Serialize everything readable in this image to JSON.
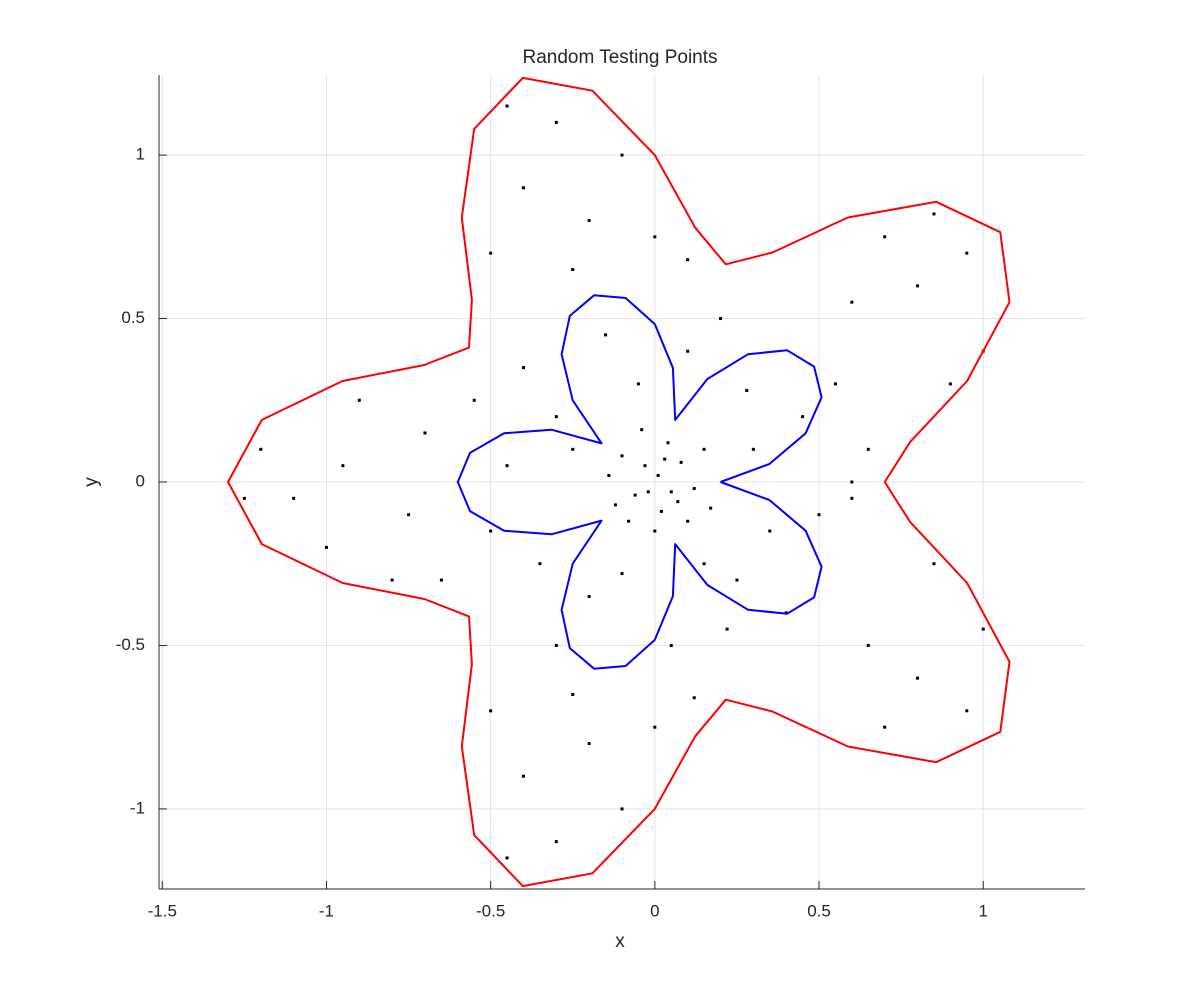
{
  "chart_data": {
    "type": "scatter",
    "title": "Random Testing Points",
    "x_label": "x",
    "y_label": "y",
    "xlim": [
      -1.51,
      1.31
    ],
    "ylim": [
      -1.245,
      1.245
    ],
    "xticks": [
      -1.5,
      -1,
      -0.5,
      0,
      0.5,
      1
    ],
    "yticks": [
      -1,
      -0.5,
      0,
      0.5,
      1
    ],
    "grid": true,
    "series": [
      {
        "type": "scatter",
        "color": "#000000",
        "x": [
          0.01,
          -0.03,
          0.05,
          0.08,
          -0.06,
          0.02,
          -0.1,
          0.12,
          0.04,
          -0.08,
          0.15,
          -0.14,
          0.0,
          0.1,
          -0.04,
          0.07,
          -0.02,
          0.03,
          -0.12,
          0.17,
          0.3,
          -0.3,
          0.25,
          -0.2,
          0.1,
          -0.45,
          0.45,
          0.35,
          -0.35,
          0.05,
          -0.15,
          0.5,
          0.2,
          -0.5,
          0.4,
          -0.4,
          0.15,
          -0.25,
          0.28,
          -0.1,
          0.55,
          -0.05,
          0.22,
          -0.3,
          0.6,
          -0.55,
          0.8,
          0.95,
          0.7,
          1.0,
          0.9,
          0.6,
          0.85,
          0.8,
          0.95,
          0.7,
          1.0,
          0.85,
          0.65,
          0.6,
          0.65,
          -0.3,
          -0.4,
          -0.2,
          -0.45,
          -0.5,
          -0.1,
          -0.25,
          0.0,
          0.1,
          -0.3,
          -0.4,
          -0.2,
          -0.45,
          -0.5,
          -0.1,
          -0.25,
          0.0,
          0.12,
          -1.2,
          -1.0,
          -0.9,
          -0.8,
          -1.1,
          -0.7,
          -0.65,
          -1.25,
          -0.95,
          -0.75
        ],
        "y": [
          0.02,
          0.05,
          -0.03,
          0.06,
          -0.04,
          -0.09,
          0.08,
          -0.02,
          0.12,
          -0.12,
          0.1,
          0.02,
          -0.15,
          -0.12,
          0.16,
          -0.06,
          -0.03,
          0.07,
          -0.07,
          -0.08,
          0.1,
          0.2,
          -0.3,
          -0.35,
          0.4,
          0.05,
          0.2,
          -0.15,
          -0.25,
          -0.5,
          0.45,
          -0.1,
          0.5,
          -0.15,
          -0.4,
          0.35,
          -0.25,
          0.1,
          0.28,
          -0.28,
          0.3,
          0.3,
          -0.45,
          -0.5,
          -0.05,
          0.25,
          0.6,
          0.7,
          0.75,
          0.4,
          0.3,
          0.55,
          0.82,
          -0.6,
          -0.7,
          -0.75,
          -0.45,
          -0.25,
          -0.5,
          0.0,
          0.1,
          1.1,
          0.9,
          0.8,
          1.15,
          0.7,
          1.0,
          0.65,
          0.75,
          0.68,
          -1.1,
          -0.9,
          -0.8,
          -1.15,
          -0.7,
          -1.0,
          -0.65,
          -0.75,
          -0.66,
          0.1,
          -0.2,
          0.25,
          -0.3,
          -0.05,
          0.15,
          -0.3,
          -0.05,
          0.05,
          -0.1
        ]
      },
      {
        "type": "line",
        "color": "#ff0000",
        "x": [
          0.7,
          0.778,
          0.951,
          1.08,
          1.052,
          0.857,
          0.588,
          0.358,
          0.216,
          0.123,
          0,
          -0.19,
          -0.402,
          -0.55,
          -0.588,
          -0.557,
          -0.566,
          -0.702,
          -0.951,
          -1.197,
          -1.3,
          -1.197,
          -0.951,
          -0.702,
          -0.566,
          -0.557,
          -0.588,
          -0.55,
          -0.402,
          -0.19,
          0,
          0.123,
          0.216,
          0.358,
          0.588,
          0.857,
          1.052,
          1.08,
          0.951,
          0.778,
          0.7
        ],
        "y": [
          0,
          0.123,
          0.309,
          0.55,
          0.764,
          0.857,
          0.809,
          0.702,
          0.666,
          0.778,
          1,
          1.197,
          1.236,
          1.08,
          0.809,
          0.557,
          0.411,
          0.358,
          0.309,
          0.19,
          0,
          -0.19,
          -0.309,
          -0.358,
          -0.411,
          -0.557,
          -0.809,
          -1.08,
          -1.236,
          -1.197,
          -1,
          -0.778,
          -0.666,
          -0.702,
          -0.809,
          -0.857,
          -0.764,
          -0.55,
          -0.309,
          -0.123,
          0
        ]
      },
      {
        "type": "line",
        "color": "#0000ff",
        "x": [
          0.2,
          0.349,
          0.459,
          0.508,
          0.485,
          0.403,
          0.284,
          0.16,
          0.062,
          0.055,
          0,
          -0.089,
          -0.185,
          -0.259,
          -0.284,
          -0.25,
          -0.162,
          -0.315,
          -0.459,
          -0.563,
          -0.6,
          -0.563,
          -0.459,
          -0.315,
          -0.162,
          -0.25,
          -0.284,
          -0.259,
          -0.185,
          -0.089,
          0,
          0.055,
          0.062,
          0.16,
          0.284,
          0.403,
          0.485,
          0.508,
          0.459,
          0.349,
          0.2
        ],
        "y": [
          0,
          0.055,
          0.149,
          0.259,
          0.353,
          0.403,
          0.391,
          0.315,
          0.19,
          0.349,
          0.483,
          0.563,
          0.571,
          0.508,
          0.391,
          0.25,
          0.118,
          0.16,
          0.149,
          0.089,
          0,
          -0.089,
          -0.149,
          -0.16,
          -0.118,
          -0.25,
          -0.391,
          -0.508,
          -0.571,
          -0.563,
          -0.483,
          -0.349,
          -0.19,
          -0.315,
          -0.391,
          -0.403,
          -0.353,
          -0.259,
          -0.149,
          -0.055,
          0
        ]
      }
    ]
  }
}
